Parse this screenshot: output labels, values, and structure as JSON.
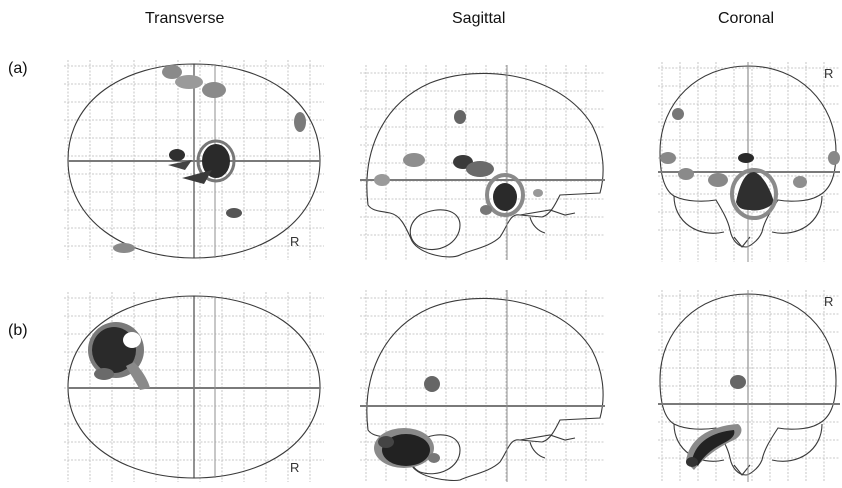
{
  "columns": {
    "transverse": "Transverse",
    "sagittal": "Sagittal",
    "coronal": "Coronal"
  },
  "rows": {
    "a": "(a)",
    "b": "(b)"
  },
  "orientation_marker": "R",
  "colors": {
    "activation_dark": "#1f1f1f",
    "activation_mid": "#555555",
    "activation_light": "#9a9a9a",
    "grid": "#b9b9b9",
    "outline": "#3a3a3a"
  }
}
